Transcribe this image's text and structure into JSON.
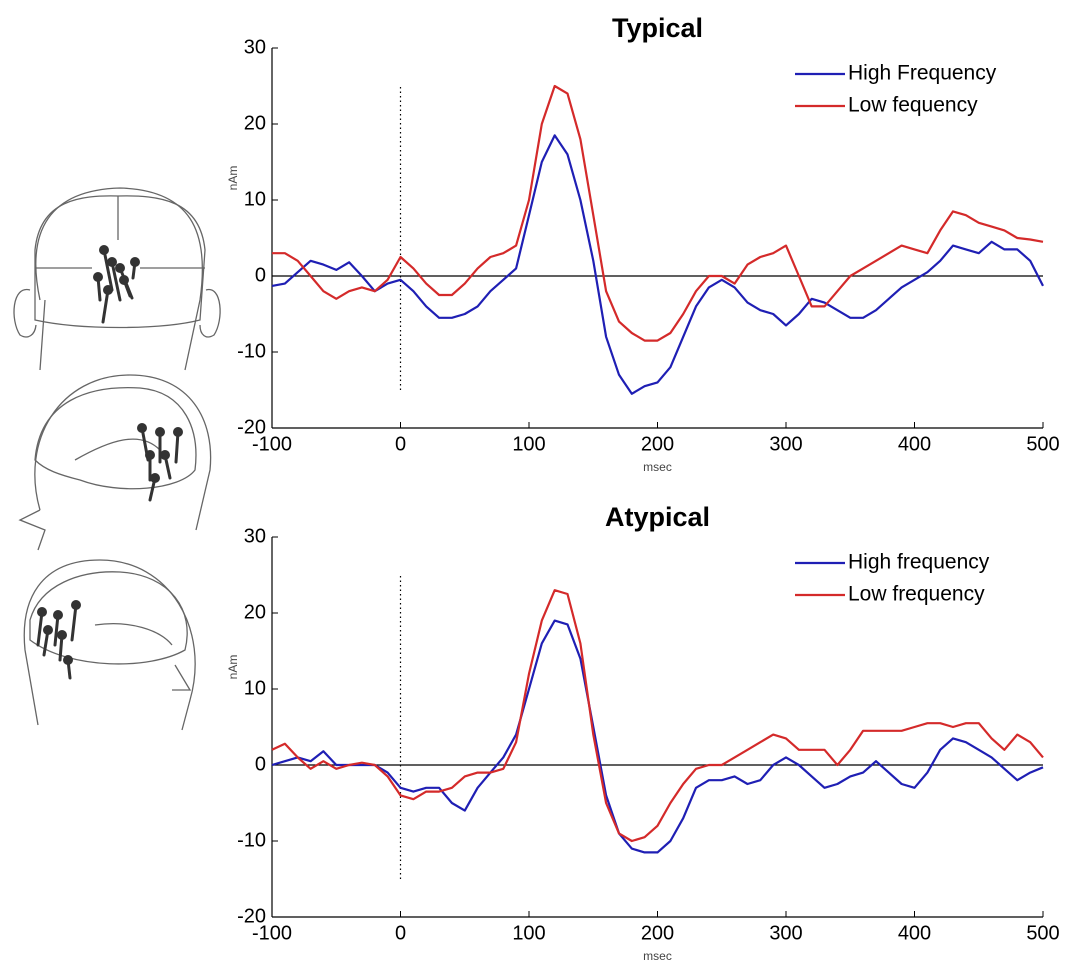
{
  "chart_data": [
    {
      "type": "line",
      "title": "Typical",
      "xlabel": "msec",
      "ylabel": "nAm",
      "x": [
        -100,
        -90,
        -80,
        -70,
        -60,
        -50,
        -40,
        -30,
        -20,
        -10,
        0,
        10,
        20,
        30,
        40,
        50,
        60,
        70,
        80,
        90,
        100,
        110,
        120,
        130,
        140,
        150,
        160,
        170,
        180,
        190,
        200,
        210,
        220,
        230,
        240,
        250,
        260,
        270,
        280,
        290,
        300,
        310,
        320,
        330,
        340,
        350,
        360,
        370,
        380,
        390,
        400,
        410,
        420,
        430,
        440,
        450,
        460,
        470,
        480,
        490,
        500
      ],
      "series": [
        {
          "name": "High Frequency",
          "color": "#1f1fb4",
          "values": [
            -1.3,
            -1,
            0.5,
            2,
            1.5,
            0.8,
            1.8,
            0,
            -2,
            -1,
            -0.5,
            -2,
            -4,
            -5.5,
            -5.5,
            -5,
            -4,
            -2,
            -0.5,
            1,
            8,
            15,
            18.5,
            16,
            10,
            2,
            -8,
            -13,
            -15.5,
            -14.5,
            -14,
            -12,
            -8,
            -4,
            -1.5,
            -0.5,
            -1.5,
            -3.5,
            -4.5,
            -5,
            -6.5,
            -5,
            -3,
            -3.5,
            -4.5,
            -5.5,
            -5.5,
            -4.5,
            -3,
            -1.5,
            -0.5,
            0.5,
            2,
            4,
            3.5,
            3,
            4.5,
            3.5,
            3.5,
            2,
            -1.3
          ]
        },
        {
          "name": "Low fequency",
          "color": "#d42a2a",
          "values": [
            3,
            3,
            2,
            0,
            -2,
            -3,
            -2,
            -1.5,
            -2,
            -0.5,
            2.5,
            1,
            -1,
            -2.5,
            -2.5,
            -1,
            1,
            2.5,
            3,
            4,
            10,
            20,
            25,
            24,
            18,
            8,
            -2,
            -6,
            -7.5,
            -8.5,
            -8.5,
            -7.5,
            -5,
            -2,
            0,
            0,
            -1,
            1.5,
            2.5,
            3,
            4,
            0,
            -4,
            -4,
            -2,
            0,
            1,
            2,
            3,
            4,
            3.5,
            3,
            6,
            8.5,
            8,
            7,
            6.5,
            6,
            5,
            4.8,
            4.5
          ]
        }
      ],
      "xlim": [
        -100,
        500
      ],
      "ylim": [
        -20,
        30
      ],
      "xticks": [
        -100,
        0,
        100,
        200,
        300,
        400,
        500
      ],
      "yticks": [
        -20,
        -10,
        0,
        10,
        20,
        30
      ],
      "marker_line": {
        "x": 0,
        "y": [
          -15,
          25
        ]
      },
      "legend": "upper right"
    },
    {
      "type": "line",
      "title": "Atypical",
      "xlabel": "msec",
      "ylabel": "nAm",
      "x": [
        -100,
        -90,
        -80,
        -70,
        -60,
        -50,
        -40,
        -30,
        -20,
        -10,
        0,
        10,
        20,
        30,
        40,
        50,
        60,
        70,
        80,
        90,
        100,
        110,
        120,
        130,
        140,
        150,
        160,
        170,
        180,
        190,
        200,
        210,
        220,
        230,
        240,
        250,
        260,
        270,
        280,
        290,
        300,
        310,
        320,
        330,
        340,
        350,
        360,
        370,
        380,
        390,
        400,
        410,
        420,
        430,
        440,
        450,
        460,
        470,
        480,
        490,
        500
      ],
      "series": [
        {
          "name": "High frequency",
          "color": "#1f1fb4",
          "values": [
            0,
            0.5,
            1,
            0.5,
            1.8,
            0,
            0,
            0,
            0,
            -1,
            -3,
            -3.5,
            -3,
            -3,
            -5,
            -6,
            -3,
            -1,
            1,
            4,
            10,
            16,
            19,
            18.5,
            14,
            5,
            -4,
            -9,
            -11,
            -11.5,
            -11.5,
            -10,
            -7,
            -3,
            -2,
            -2,
            -1.5,
            -2.5,
            -2,
            0,
            1,
            0,
            -1.5,
            -3,
            -2.5,
            -1.5,
            -1,
            0.5,
            -1,
            -2.5,
            -3,
            -1,
            2,
            3.5,
            3,
            2,
            1,
            -0.5,
            -2,
            -1,
            -0.3
          ]
        },
        {
          "name": "Low frequency",
          "color": "#d42a2a",
          "values": [
            2,
            2.8,
            1,
            -0.5,
            0.5,
            -0.5,
            0,
            0.3,
            0,
            -1.5,
            -4,
            -4.5,
            -3.5,
            -3.5,
            -3,
            -1.5,
            -1,
            -1,
            -0.5,
            3,
            12,
            19,
            23,
            22.5,
            16,
            4,
            -5,
            -9,
            -10,
            -9.5,
            -8,
            -5,
            -2.5,
            -0.5,
            0,
            0,
            1,
            2,
            3,
            4,
            3.5,
            2,
            2,
            2,
            0,
            2,
            4.5,
            4.5,
            4.5,
            4.5,
            5,
            5.5,
            5.5,
            5,
            5.5,
            5.5,
            3.5,
            2,
            4,
            3,
            1
          ]
        }
      ],
      "xlim": [
        -100,
        500
      ],
      "ylim": [
        -20,
        30
      ],
      "xticks": [
        -100,
        0,
        100,
        200,
        300,
        400,
        500
      ],
      "yticks": [
        -20,
        -10,
        0,
        10,
        20,
        30
      ],
      "marker_line": {
        "x": 0,
        "y": [
          -15,
          25
        ]
      },
      "legend": "upper right"
    }
  ]
}
